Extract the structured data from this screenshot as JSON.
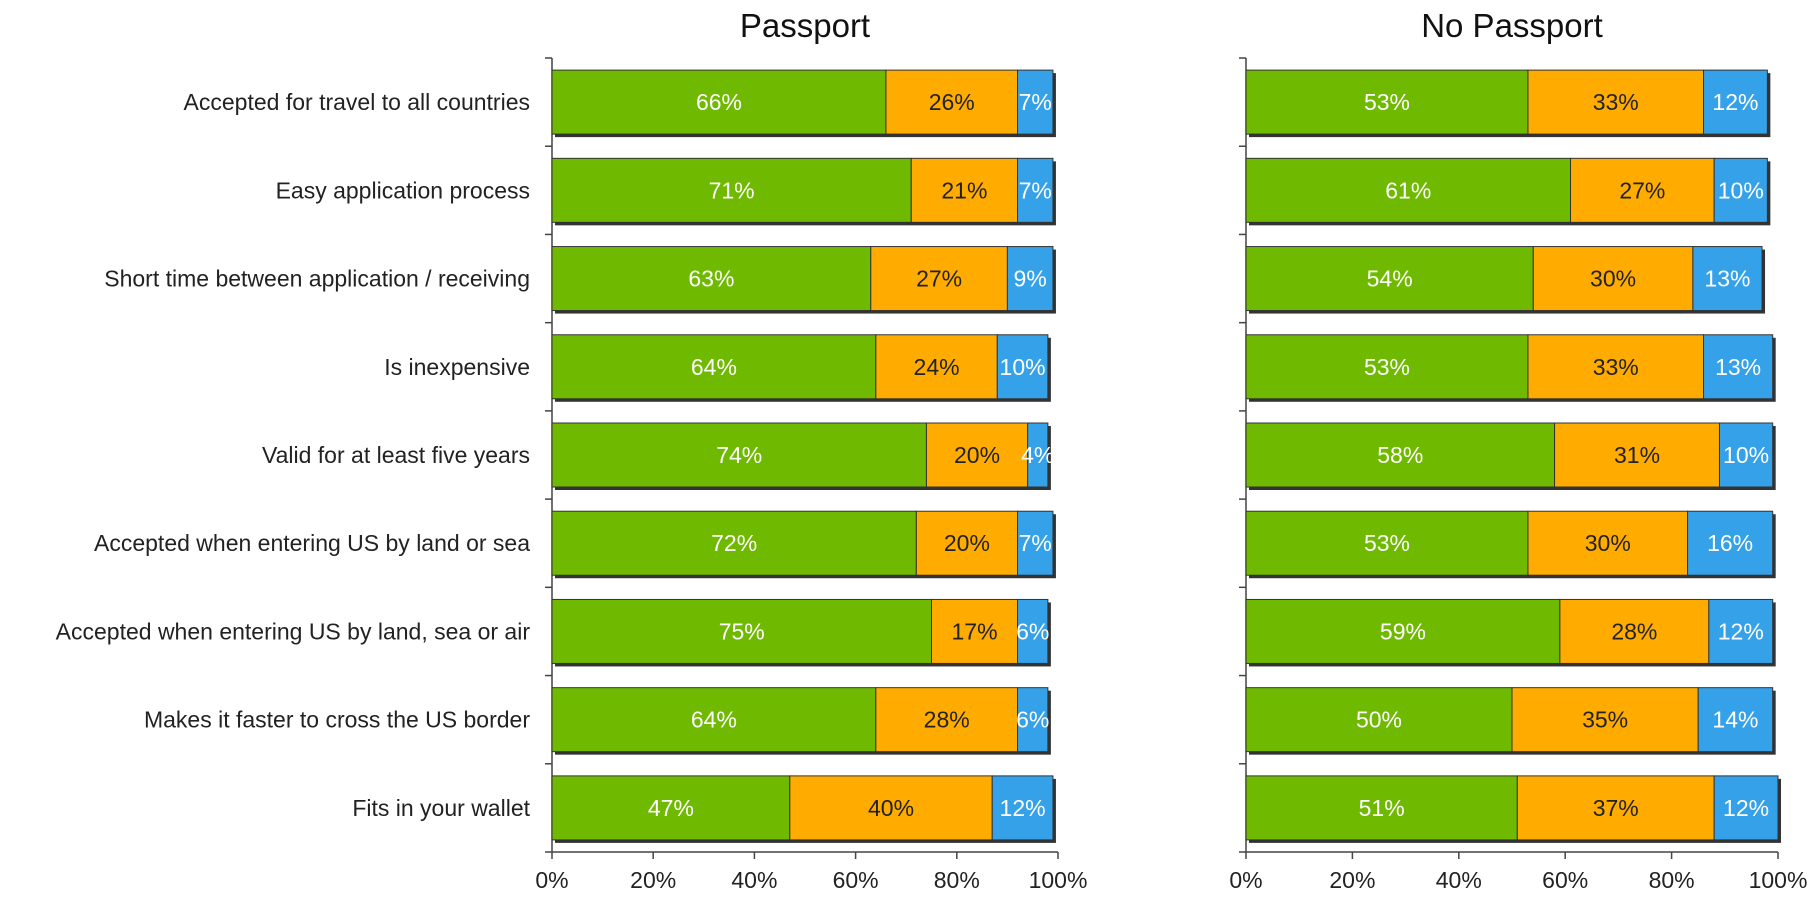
{
  "colors": {
    "segment_1": "#6fba00",
    "segment_2": "#ffab00",
    "segment_3": "#34a1e8",
    "shadow": "#333333",
    "axis": "#444444"
  },
  "chart_data": {
    "type": "bar",
    "orientation": "horizontal",
    "stacked": true,
    "categories": [
      "Accepted for travel to all countries",
      "Easy application process",
      "Short time between application / receiving",
      "Is inexpensive",
      "Valid for at least five years",
      "Accepted when entering US by land or sea",
      "Accepted when entering US by land, sea or air",
      "Makes it faster to cross the US border",
      "Fits in your wallet"
    ],
    "xlim": [
      0,
      100
    ],
    "x_ticks": [
      "0%",
      "20%",
      "40%",
      "60%",
      "80%",
      "100%"
    ],
    "legend": "none",
    "grid": false,
    "panels": [
      {
        "title": "Passport",
        "series": [
          {
            "values": [
              66,
              71,
              63,
              64,
              74,
              72,
              75,
              64,
              47
            ]
          },
          {
            "values": [
              26,
              21,
              27,
              24,
              20,
              20,
              17,
              28,
              40
            ]
          },
          {
            "values": [
              7,
              7,
              9,
              10,
              4,
              7,
              6,
              6,
              12
            ]
          }
        ]
      },
      {
        "title": "No Passport",
        "series": [
          {
            "values": [
              53,
              61,
              54,
              53,
              58,
              53,
              59,
              50,
              51
            ]
          },
          {
            "values": [
              33,
              27,
              30,
              33,
              31,
              30,
              28,
              35,
              37
            ]
          },
          {
            "values": [
              12,
              10,
              13,
              13,
              10,
              16,
              12,
              14,
              12
            ]
          }
        ]
      }
    ]
  }
}
